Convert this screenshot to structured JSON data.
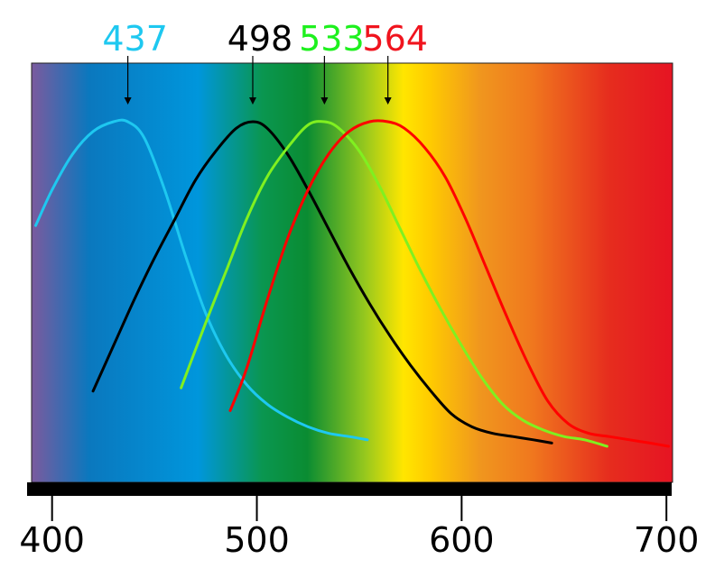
{
  "chart_data": {
    "type": "line",
    "xlim": [
      390,
      703
    ],
    "ylim": [
      0,
      1.05
    ],
    "x_ticks": [
      {
        "value": 400,
        "label": "400"
      },
      {
        "value": 500,
        "label": "500"
      },
      {
        "value": 600,
        "label": "600"
      },
      {
        "value": 700,
        "label": "700"
      }
    ],
    "series": [
      {
        "color": "#1ec8f0",
        "peak": 437,
        "peak_label": "437",
        "label_color": "#1ec8f0",
        "x": [
          392,
          400,
          410,
          420,
          430,
          437,
          445,
          455,
          465,
          475,
          485,
          495,
          505,
          515,
          525,
          535,
          545,
          554
        ],
        "y": [
          0.68,
          0.79,
          0.9,
          0.97,
          1.0,
          1.0,
          0.95,
          0.79,
          0.59,
          0.41,
          0.28,
          0.19,
          0.13,
          0.09,
          0.06,
          0.04,
          0.03,
          0.02
        ]
      },
      {
        "color": "#000000",
        "peak": 498,
        "peak_label": "498",
        "label_color": "#000000",
        "x": [
          420,
          430,
          440,
          450,
          460,
          470,
          480,
          490,
          498,
          505,
          515,
          525,
          535,
          545,
          555,
          565,
          575,
          585,
          595,
          605,
          615,
          625,
          635,
          644
        ],
        "y": [
          0.17,
          0.31,
          0.45,
          0.58,
          0.7,
          0.82,
          0.91,
          0.98,
          1.0,
          0.98,
          0.9,
          0.79,
          0.67,
          0.55,
          0.44,
          0.34,
          0.25,
          0.17,
          0.1,
          0.06,
          0.04,
          0.03,
          0.02,
          0.01
        ]
      },
      {
        "color": "#80f020",
        "peak": 533,
        "peak_label": "533",
        "label_color": "#1ef01e",
        "x": [
          463,
          475,
          485,
          495,
          505,
          515,
          525,
          533,
          540,
          550,
          560,
          570,
          580,
          590,
          600,
          610,
          620,
          630,
          640,
          650,
          660,
          671
        ],
        "y": [
          0.18,
          0.38,
          0.54,
          0.7,
          0.83,
          0.92,
          0.99,
          1.0,
          0.98,
          0.91,
          0.8,
          0.67,
          0.54,
          0.42,
          0.31,
          0.21,
          0.13,
          0.08,
          0.05,
          0.03,
          0.02,
          0.0
        ]
      },
      {
        "color": "#ff0000",
        "peak": 564,
        "peak_label": "564",
        "label_color": "#f0141e",
        "x": [
          487,
          495,
          505,
          515,
          525,
          535,
          545,
          555,
          564,
          572,
          582,
          592,
          602,
          612,
          622,
          632,
          642,
          652,
          662,
          672,
          682,
          692,
          701
        ],
        "y": [
          0.11,
          0.24,
          0.45,
          0.64,
          0.79,
          0.9,
          0.97,
          1.0,
          1.0,
          0.98,
          0.92,
          0.83,
          0.7,
          0.55,
          0.4,
          0.26,
          0.14,
          0.07,
          0.04,
          0.03,
          0.02,
          0.01,
          0.0
        ]
      }
    ]
  },
  "spectrum_colors": [
    "#7b5a9e",
    "#0a78be",
    "#0096dc",
    "#0a9650",
    "#0a8c32",
    "#96c81e",
    "#ffe600",
    "#ffcc00",
    "#f0961e",
    "#f0781e",
    "#e62d1e",
    "#e61423"
  ]
}
